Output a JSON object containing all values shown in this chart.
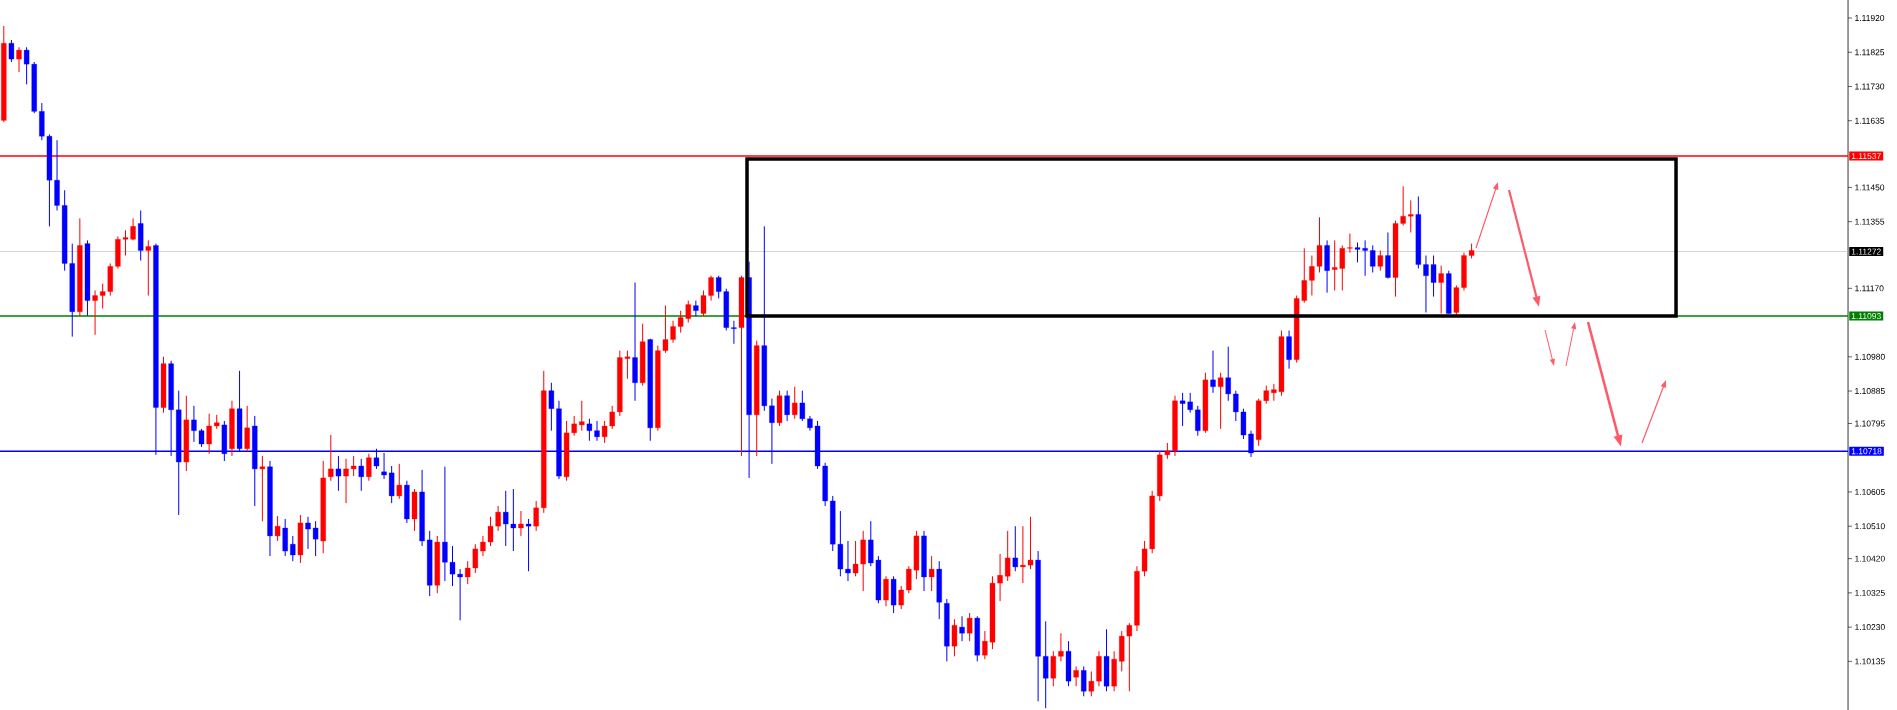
{
  "chart_data": {
    "type": "candlestick",
    "categories": [
      null,
      null,
      null,
      null,
      null,
      null,
      null,
      null,
      null,
      null,
      null,
      null,
      null,
      null,
      null,
      null,
      null,
      null,
      null,
      null,
      null,
      null,
      null,
      null,
      null,
      null,
      null,
      null,
      null,
      null,
      null,
      null,
      null,
      null,
      null,
      null,
      null,
      null,
      null,
      null,
      null,
      null,
      null,
      null,
      null,
      null,
      null,
      null,
      null,
      null,
      null,
      null,
      null,
      null,
      null,
      null,
      null,
      null,
      null,
      null,
      null,
      null,
      null,
      null,
      null,
      null,
      null,
      null,
      null,
      null,
      null,
      null,
      null,
      null,
      null,
      null,
      null,
      null,
      null,
      null,
      null,
      null,
      null,
      null,
      null,
      null,
      null,
      null,
      null,
      null,
      null,
      null,
      null,
      null,
      null,
      null,
      null,
      null,
      null,
      null,
      null,
      null,
      null,
      null,
      null,
      null,
      null,
      null,
      null,
      null,
      null,
      null,
      null,
      null,
      null,
      null,
      null,
      null,
      null,
      null,
      null,
      null,
      null,
      null,
      null,
      null,
      null,
      null,
      null,
      null,
      null,
      null,
      null,
      null,
      null,
      null,
      null,
      null,
      null,
      null,
      null,
      null,
      null,
      null,
      null,
      null,
      null,
      null,
      null,
      null,
      null,
      null,
      null,
      null,
      null,
      null,
      null,
      null,
      null,
      null,
      null,
      null,
      null,
      null,
      null,
      null,
      null,
      null,
      null,
      null,
      null,
      null,
      null,
      null,
      null,
      null,
      null,
      null,
      null,
      null,
      null,
      null,
      null,
      null,
      null,
      null,
      null,
      null,
      null,
      null,
      null,
      null,
      null,
      null,
      null,
      null,
      null,
      null,
      null,
      null,
      null,
      null,
      null,
      null,
      null,
      null,
      null,
      null,
      null,
      null,
      null,
      null,
      null,
      null,
      null,
      null,
      null,
      null,
      null,
      null,
      null,
      null,
      null,
      null,
      null,
      null,
      null,
      null,
      null,
      null,
      null,
      null,
      null,
      null,
      null,
      null,
      null,
      null,
      null,
      null,
      null,
      null,
      null
    ],
    "ohlc": [
      [
        1.11636,
        1.11898,
        1.11631,
        1.1185
      ],
      [
        1.1185,
        1.11859,
        1.11798,
        1.11806
      ],
      [
        1.11806,
        1.11839,
        1.1177,
        1.11831
      ],
      [
        1.11831,
        1.11839,
        1.11736,
        1.11792
      ],
      [
        1.11792,
        1.11798,
        1.11656,
        1.11661
      ],
      [
        1.11661,
        1.11684,
        1.11581,
        1.11592
      ],
      [
        1.11592,
        1.11597,
        1.11342,
        1.1147
      ],
      [
        1.1147,
        1.11581,
        1.11386,
        1.114
      ],
      [
        1.114,
        1.11442,
        1.11219,
        1.11239
      ],
      [
        1.11239,
        1.11294,
        1.11036,
        1.11105
      ],
      [
        1.11105,
        1.11364,
        1.11092,
        1.11289
      ],
      [
        1.11294,
        1.11303,
        1.11094,
        1.11136
      ],
      [
        1.11136,
        1.11164,
        1.11041,
        1.1115
      ],
      [
        1.1115,
        1.11183,
        1.11114,
        1.11161
      ],
      [
        1.11161,
        1.11239,
        1.1115,
        1.11231
      ],
      [
        1.11231,
        1.11314,
        1.11225,
        1.11306
      ],
      [
        1.11306,
        1.11331,
        1.11261,
        1.11311
      ],
      [
        1.11306,
        1.11364,
        1.11303,
        1.11342
      ],
      [
        1.1135,
        1.11386,
        1.11247,
        1.11275
      ],
      [
        1.11275,
        1.11303,
        1.1115,
        1.11286
      ],
      [
        1.11289,
        1.11294,
        1.10708,
        1.10839
      ],
      [
        1.10839,
        1.1098,
        1.10825,
        1.10961
      ],
      [
        1.10961,
        1.10969,
        1.10705,
        1.10833
      ],
      [
        1.10833,
        1.10886,
        1.10541,
        1.10688
      ],
      [
        1.10688,
        1.10872,
        1.10663,
        1.10805
      ],
      [
        1.10805,
        1.10844,
        1.10744,
        1.10775
      ],
      [
        1.10775,
        1.1078,
        1.1073,
        1.10738
      ],
      [
        1.10738,
        1.10822,
        1.10711,
        1.10788
      ],
      [
        1.10788,
        1.10819,
        1.1078,
        1.10797
      ],
      [
        1.10791,
        1.10802,
        1.10691,
        1.10711
      ],
      [
        1.10725,
        1.10858,
        1.10705,
        1.10836
      ],
      [
        1.10836,
        1.10941,
        1.10719,
        1.10725
      ],
      [
        1.10725,
        1.10844,
        1.10719,
        1.10783
      ],
      [
        1.10788,
        1.10816,
        1.10566,
        1.10669
      ],
      [
        1.10669,
        1.10705,
        1.10524,
        1.10675
      ],
      [
        1.10675,
        1.10691,
        1.10427,
        1.10483
      ],
      [
        1.10483,
        1.10538,
        1.10469,
        1.1051
      ],
      [
        1.10505,
        1.1053,
        1.10427,
        1.10441
      ],
      [
        1.1046,
        1.10483,
        1.10413,
        1.1043
      ],
      [
        1.1043,
        1.10541,
        1.10408,
        1.10519
      ],
      [
        1.10519,
        1.10536,
        1.10447,
        1.10502
      ],
      [
        1.10505,
        1.10524,
        1.10427,
        1.10474
      ],
      [
        1.10469,
        1.10691,
        1.10435,
        1.10644
      ],
      [
        1.10647,
        1.10763,
        1.10636,
        1.10669
      ],
      [
        1.10669,
        1.10705,
        1.10608,
        1.10649
      ],
      [
        1.10649,
        1.10697,
        1.10574,
        1.10669
      ],
      [
        1.10669,
        1.10705,
        1.10649,
        1.10677
      ],
      [
        1.10677,
        1.10697,
        1.10608,
        1.10647
      ],
      [
        1.10647,
        1.10711,
        1.10636,
        1.107
      ],
      [
        1.107,
        1.10725,
        1.10669,
        1.10677
      ],
      [
        1.10661,
        1.10713,
        1.10641,
        1.10652
      ],
      [
        1.10658,
        1.10677,
        1.10574,
        1.10594
      ],
      [
        1.10594,
        1.10683,
        1.10586,
        1.10624
      ],
      [
        1.10624,
        1.10636,
        1.10519,
        1.1053
      ],
      [
        1.1053,
        1.10613,
        1.10497,
        1.10605
      ],
      [
        1.10605,
        1.10666,
        1.10455,
        1.10469
      ],
      [
        1.10472,
        1.10497,
        1.10316,
        1.10346
      ],
      [
        1.10346,
        1.10483,
        1.10324,
        1.10466
      ],
      [
        1.10466,
        1.10675,
        1.10358,
        1.1041
      ],
      [
        1.1041,
        1.10455,
        1.10344,
        1.10377
      ],
      [
        1.10377,
        1.10391,
        1.10249,
        1.10369
      ],
      [
        1.10369,
        1.10413,
        1.10349,
        1.10394
      ],
      [
        1.10394,
        1.1046,
        1.1038,
        1.10447
      ],
      [
        1.10441,
        1.10483,
        1.10427,
        1.10466
      ],
      [
        1.10466,
        1.10536,
        1.10455,
        1.1051
      ],
      [
        1.1051,
        1.10566,
        1.10497,
        1.10549
      ],
      [
        1.10549,
        1.10608,
        1.10455,
        1.10516
      ],
      [
        1.10516,
        1.10613,
        1.10441,
        1.10505
      ],
      [
        1.10505,
        1.10552,
        1.10483,
        1.10516
      ],
      [
        1.10516,
        1.1053,
        1.10385,
        1.1051
      ],
      [
        1.1051,
        1.1058,
        1.10497,
        1.10561
      ],
      [
        1.10561,
        1.10941,
        1.10547,
        1.10886
      ],
      [
        1.10886,
        1.10908,
        1.10775,
        1.10836
      ],
      [
        1.10836,
        1.10858,
        1.10641,
        1.10649
      ],
      [
        1.10647,
        1.10802,
        1.10636,
        1.10769
      ],
      [
        1.10769,
        1.10816,
        1.10761,
        1.10794
      ],
      [
        1.10791,
        1.10858,
        1.10775,
        1.108
      ],
      [
        1.10794,
        1.10808,
        1.10747,
        1.10775
      ],
      [
        1.10775,
        1.10802,
        1.10747,
        1.10758
      ],
      [
        1.10758,
        1.10802,
        1.10741,
        1.10788
      ],
      [
        1.10788,
        1.10844,
        1.1078,
        1.10827
      ],
      [
        1.10827,
        1.10997,
        1.10816,
        1.10978
      ],
      [
        1.10975,
        1.10997,
        1.10919,
        1.1098
      ],
      [
        1.10978,
        1.11186,
        1.10858,
        1.10908
      ],
      [
        1.10908,
        1.11072,
        1.109,
        1.11022
      ],
      [
        1.11028,
        1.1103,
        1.10747,
        1.10783
      ],
      [
        1.10783,
        1.11011,
        1.10775,
        1.10997
      ],
      [
        1.10997,
        1.11122,
        1.10991,
        1.11028
      ],
      [
        1.11028,
        1.1108,
        1.11019,
        1.11064
      ],
      [
        1.11064,
        1.11108,
        1.11047,
        1.11089
      ],
      [
        1.11086,
        1.11136,
        1.11075,
        1.11125
      ],
      [
        1.11122,
        1.11136,
        1.11092,
        1.11108
      ],
      [
        1.111,
        1.11164,
        1.11092,
        1.1115
      ],
      [
        1.1115,
        1.11205,
        1.11136,
        1.112
      ],
      [
        1.112,
        1.11205,
        1.11142,
        1.11161
      ],
      [
        1.11161,
        1.11169,
        1.11053,
        1.11061
      ],
      [
        1.11061,
        1.1108,
        1.11016,
        1.11058
      ],
      [
        1.11061,
        1.11205,
        1.10705,
        1.112
      ],
      [
        1.112,
        1.11244,
        1.10644,
        1.10819
      ],
      [
        1.10819,
        1.11025,
        1.10705,
        1.11011
      ],
      [
        1.11011,
        1.11342,
        1.1083,
        1.10844
      ],
      [
        1.10844,
        1.10864,
        1.10683,
        1.10797
      ],
      [
        1.10797,
        1.10886,
        1.10788,
        1.10872
      ],
      [
        1.10872,
        1.10886,
        1.10802,
        1.10819
      ],
      [
        1.10819,
        1.10897,
        1.10808,
        1.10852
      ],
      [
        1.10852,
        1.10886,
        1.10802,
        1.10808
      ],
      [
        1.10808,
        1.10816,
        1.10775,
        1.10783
      ],
      [
        1.10788,
        1.10802,
        1.10669,
        1.10677
      ],
      [
        1.10677,
        1.10686,
        1.10566,
        1.1058
      ],
      [
        1.1058,
        1.10594,
        1.10441,
        1.1046
      ],
      [
        1.1046,
        1.10552,
        1.10371,
        1.10391
      ],
      [
        1.10391,
        1.10469,
        1.10358,
        1.1038
      ],
      [
        1.1038,
        1.10469,
        1.10371,
        1.10405
      ],
      [
        1.10405,
        1.10497,
        1.1033,
        1.10472
      ],
      [
        1.10472,
        1.10524,
        1.10399,
        1.10408
      ],
      [
        1.10416,
        1.10427,
        1.10296,
        1.10305
      ],
      [
        1.10305,
        1.10371,
        1.10288,
        1.10363
      ],
      [
        1.10363,
        1.10371,
        1.10269,
        1.10291
      ],
      [
        1.10291,
        1.10344,
        1.1028,
        1.10333
      ],
      [
        1.10333,
        1.10399,
        1.10324,
        1.10391
      ],
      [
        1.10388,
        1.10497,
        1.10363,
        1.10483
      ],
      [
        1.10483,
        1.10497,
        1.1033,
        1.10369
      ],
      [
        1.10369,
        1.10427,
        1.1033,
        1.10391
      ],
      [
        1.10391,
        1.10413,
        1.10252,
        1.10299
      ],
      [
        1.10296,
        1.10308,
        1.10135,
        1.10177
      ],
      [
        1.10177,
        1.10252,
        1.10149,
        1.10235
      ],
      [
        1.1023,
        1.1026,
        1.10191,
        1.10213
      ],
      [
        1.10213,
        1.10269,
        1.10191,
        1.10255
      ],
      [
        1.10255,
        1.1026,
        1.10135,
        1.10152
      ],
      [
        1.10152,
        1.10219,
        1.10141,
        1.10191
      ],
      [
        1.10188,
        1.10371,
        1.10169,
        1.10352
      ],
      [
        1.10352,
        1.10433,
        1.10302,
        1.10374
      ],
      [
        1.10371,
        1.10497,
        1.10358,
        1.10422
      ],
      [
        1.10422,
        1.1051,
        1.10385,
        1.10397
      ],
      [
        1.10397,
        1.1051,
        1.10352,
        1.10402
      ],
      [
        1.10402,
        1.10536,
        1.10391,
        1.10416
      ],
      [
        1.10416,
        1.10441,
        1.10024,
        1.10149
      ],
      [
        1.10149,
        1.10246,
        1.10005,
        1.10088
      ],
      [
        1.10088,
        1.10163,
        1.10066,
        1.10149
      ],
      [
        1.10149,
        1.10213,
        1.10135,
        1.10163
      ],
      [
        1.10163,
        1.10191,
        1.10066,
        1.1008
      ],
      [
        1.10091,
        1.10121,
        1.10066,
        1.1011
      ],
      [
        1.1011,
        1.10121,
        1.10038,
        1.10052
      ],
      [
        1.10052,
        1.10107,
        1.10038,
        1.1008
      ],
      [
        1.1008,
        1.10163,
        1.10066,
        1.10149
      ],
      [
        1.10149,
        1.10224,
        1.10052,
        1.10066
      ],
      [
        1.10066,
        1.10163,
        1.10052,
        1.10141
      ],
      [
        1.10135,
        1.10219,
        1.10107,
        1.10205
      ],
      [
        1.10205,
        1.10241,
        1.10052,
        1.10235
      ],
      [
        1.10235,
        1.10399,
        1.10219,
        1.10385
      ],
      [
        1.10385,
        1.10469,
        1.10371,
        1.10447
      ],
      [
        1.10447,
        1.10608,
        1.10435,
        1.10594
      ],
      [
        1.10594,
        1.10719,
        1.1058,
        1.10708
      ],
      [
        1.10708,
        1.10741,
        1.10697,
        1.10719
      ],
      [
        1.10719,
        1.10872,
        1.10705,
        1.10858
      ],
      [
        1.10858,
        1.1088,
        1.10788,
        1.1085
      ],
      [
        1.10855,
        1.1088,
        1.10825,
        1.10833
      ],
      [
        1.10833,
        1.10844,
        1.10761,
        1.10775
      ],
      [
        1.10775,
        1.10936,
        1.10769,
        1.10916
      ],
      [
        1.10916,
        1.10997,
        1.1088,
        1.10897
      ],
      [
        1.10897,
        1.10936,
        1.1078,
        1.10922
      ],
      [
        1.10922,
        1.11008,
        1.10858,
        1.10877
      ],
      [
        1.10877,
        1.10886,
        1.10802,
        1.10827
      ],
      [
        1.10827,
        1.10836,
        1.10752,
        1.10763
      ],
      [
        1.10766,
        1.10775,
        1.10702,
        1.10713
      ],
      [
        1.1075,
        1.10864,
        1.10733,
        1.10858
      ],
      [
        1.10858,
        1.109,
        1.1085,
        1.10886
      ],
      [
        1.1088,
        1.10905,
        1.10858,
        1.10889
      ],
      [
        1.10883,
        1.11053,
        1.10872,
        1.11036
      ],
      [
        1.11036,
        1.11053,
        1.10947,
        1.10972
      ],
      [
        1.10972,
        1.1115,
        1.10964,
        1.11142
      ],
      [
        1.11136,
        1.11281,
        1.1113,
        1.11192
      ],
      [
        1.11192,
        1.11261,
        1.1115,
        1.11231
      ],
      [
        1.11231,
        1.11367,
        1.11214,
        1.11289
      ],
      [
        1.11289,
        1.11303,
        1.11158,
        1.11219
      ],
      [
        1.11222,
        1.11303,
        1.11164,
        1.11228
      ],
      [
        1.11225,
        1.11289,
        1.11164,
        1.11281
      ],
      [
        1.11281,
        1.11322,
        1.11269,
        1.11283
      ],
      [
        1.11283,
        1.11297,
        1.11242,
        1.11278
      ],
      [
        1.11281,
        1.11303,
        1.11205,
        1.11275
      ],
      [
        1.11275,
        1.11289,
        1.11214,
        1.11231
      ],
      [
        1.11231,
        1.11275,
        1.11219,
        1.11261
      ],
      [
        1.11261,
        1.11325,
        1.11197,
        1.112
      ],
      [
        1.112,
        1.11358,
        1.11147,
        1.1135
      ],
      [
        1.1135,
        1.11453,
        1.11344,
        1.1137
      ],
      [
        1.1137,
        1.11414,
        1.11325,
        1.11375
      ],
      [
        1.11375,
        1.11425,
        1.11225,
        1.11236
      ],
      [
        1.11236,
        1.11261,
        1.11103,
        1.11205
      ],
      [
        1.11236,
        1.11261,
        1.11147,
        1.11186
      ],
      [
        1.11186,
        1.11233,
        1.111,
        1.11211
      ],
      [
        1.11211,
        1.11219,
        1.111,
        1.111
      ],
      [
        1.11103,
        1.11178,
        1.11097,
        1.11172
      ],
      [
        1.11172,
        1.11269,
        1.11164,
        1.11261
      ],
      [
        1.11261,
        1.11294,
        1.11253,
        1.11275
      ],
      null,
      null,
      null,
      null,
      null,
      null,
      null,
      null,
      null,
      null,
      null,
      null,
      null,
      null,
      null,
      null,
      null,
      null,
      null,
      null,
      null,
      null,
      null,
      null,
      null,
      null,
      null,
      null,
      null,
      null,
      null,
      null,
      null,
      null,
      null,
      null,
      null,
      null,
      null,
      null,
      null,
      null,
      null,
      null,
      null,
      null,
      null,
      null,
      null
    ],
    "colors": [
      "#ff0000",
      "#0000ff",
      "#ff0000",
      "#0000ff",
      "#0000ff",
      "#0000ff",
      "#0000ff",
      "#0000ff",
      "#0000ff",
      "#0000ff",
      "#ff0000",
      "#0000ff",
      "#ff0000",
      "#ff0000",
      "#ff0000",
      "#ff0000",
      "#ff0000",
      "#ff0000",
      "#0000ff",
      "#ff0000",
      "#0000ff",
      "#ff0000",
      "#0000ff",
      "#0000ff",
      "#ff0000",
      "#0000ff",
      "#0000ff",
      "#ff0000",
      "#ff0000",
      "#0000ff",
      "#ff0000",
      "#0000ff",
      "#ff0000",
      "#0000ff",
      "#ff0000",
      "#0000ff",
      "#ff0000",
      "#0000ff",
      "#0000ff",
      "#ff0000",
      "#0000ff",
      "#0000ff",
      "#ff0000",
      "#ff0000",
      "#0000ff",
      "#ff0000",
      "#ff0000",
      "#0000ff",
      "#ff0000",
      "#0000ff",
      "#0000ff",
      "#0000ff",
      "#ff0000",
      "#0000ff",
      "#ff0000",
      "#0000ff",
      "#0000ff",
      "#ff0000",
      "#0000ff",
      "#0000ff",
      "#0000ff",
      "#ff0000",
      "#ff0000",
      "#ff0000",
      "#ff0000",
      "#ff0000",
      "#0000ff",
      "#0000ff",
      "#ff0000",
      "#0000ff",
      "#ff0000",
      "#ff0000",
      "#0000ff",
      "#0000ff",
      "#ff0000",
      "#ff0000",
      "#ff0000",
      "#0000ff",
      "#0000ff",
      "#ff0000",
      "#ff0000",
      "#ff0000",
      "#ff0000",
      "#0000ff",
      "#ff0000",
      "#0000ff",
      "#ff0000",
      "#ff0000",
      "#ff0000",
      "#ff0000",
      "#ff0000",
      "#0000ff",
      "#ff0000",
      "#ff0000",
      "#0000ff",
      "#0000ff",
      "#0000ff",
      "#ff0000",
      "#0000ff",
      "#ff0000",
      "#0000ff",
      "#0000ff",
      "#ff0000",
      "#0000ff",
      "#ff0000",
      "#0000ff",
      "#0000ff",
      "#0000ff",
      "#0000ff",
      "#0000ff",
      "#0000ff",
      "#0000ff",
      "#ff0000",
      "#ff0000",
      "#0000ff",
      "#0000ff",
      "#ff0000",
      "#0000ff",
      "#ff0000",
      "#ff0000",
      "#ff0000",
      "#0000ff",
      "#ff0000",
      "#0000ff",
      "#0000ff",
      "#ff0000",
      "#0000ff",
      "#ff0000",
      "#0000ff",
      "#ff0000",
      "#ff0000",
      "#ff0000",
      "#ff0000",
      "#0000ff",
      "#ff0000",
      "#ff0000",
      "#0000ff",
      "#0000ff",
      "#ff0000",
      "#ff0000",
      "#0000ff",
      "#ff0000",
      "#0000ff",
      "#ff0000",
      "#ff0000",
      "#0000ff",
      "#ff0000",
      "#ff0000",
      "#ff0000",
      "#ff0000",
      "#ff0000",
      "#ff0000",
      "#ff0000",
      "#ff0000",
      "#ff0000",
      "#0000ff",
      "#0000ff",
      "#0000ff",
      "#ff0000",
      "#0000ff",
      "#ff0000",
      "#0000ff",
      "#0000ff",
      "#0000ff",
      "#0000ff",
      "#ff0000",
      "#ff0000",
      "#ff0000",
      "#ff0000",
      "#0000ff",
      "#ff0000",
      "#ff0000",
      "#ff0000",
      "#ff0000",
      "#0000ff",
      "#ff0000",
      "#ff0000",
      "#ff0000",
      "#0000ff",
      "#0000ff",
      "#0000ff",
      "#ff0000",
      "#0000ff",
      "#ff0000",
      "#ff0000",
      "#ff0000",
      "#0000ff",
      "#0000ff",
      "#0000ff",
      "#ff0000",
      "#0000ff",
      "#ff0000",
      "#ff0000",
      "#ff0000",
      null,
      null,
      null,
      null,
      null,
      null,
      null,
      null,
      null,
      null,
      null,
      null,
      null,
      null,
      null,
      null,
      null,
      null,
      null,
      null,
      null,
      null,
      null,
      null,
      null,
      null,
      null,
      null,
      null,
      null,
      null,
      null,
      null,
      null,
      null,
      null,
      null,
      null,
      null,
      null,
      null,
      null,
      null,
      null,
      null,
      null,
      null,
      null,
      null
    ],
    "ylim": [
      1.1,
      1.1197
    ],
    "yticks": [
      {
        "value": 1.1192,
        "label": "1.11920"
      },
      1.11825,
      {
        "value": 1.1173,
        "label": "1.11730"
      },
      1.11635,
      {
        "value": 1.1145,
        "label": "1.11450"
      },
      1.11355,
      {
        "value": 1.1117,
        "label": "1.11170"
      },
      {
        "value": 1.1098,
        "label": "1.10980"
      },
      1.10885,
      1.10795,
      1.10605,
      {
        "value": 1.1051,
        "label": "1.10510"
      },
      {
        "value": 1.1042,
        "label": "1.10420"
      },
      1.10325,
      {
        "value": 1.1023,
        "label": "1.10230"
      },
      1.10135
    ],
    "ref_lines": [
      {
        "axis": "y",
        "value": 1.11537,
        "label": "1.11537",
        "color": "#ff0000"
      },
      {
        "axis": "y",
        "value": 1.11272,
        "label": "1.11272",
        "color": "#c8c8c8"
      },
      {
        "axis": "y",
        "value": 1.11093,
        "label": "1.11093",
        "color": "#008000"
      },
      {
        "axis": "y",
        "value": 1.10718,
        "label": "1.10718",
        "color": "#0000ff"
      }
    ]
  }
}
